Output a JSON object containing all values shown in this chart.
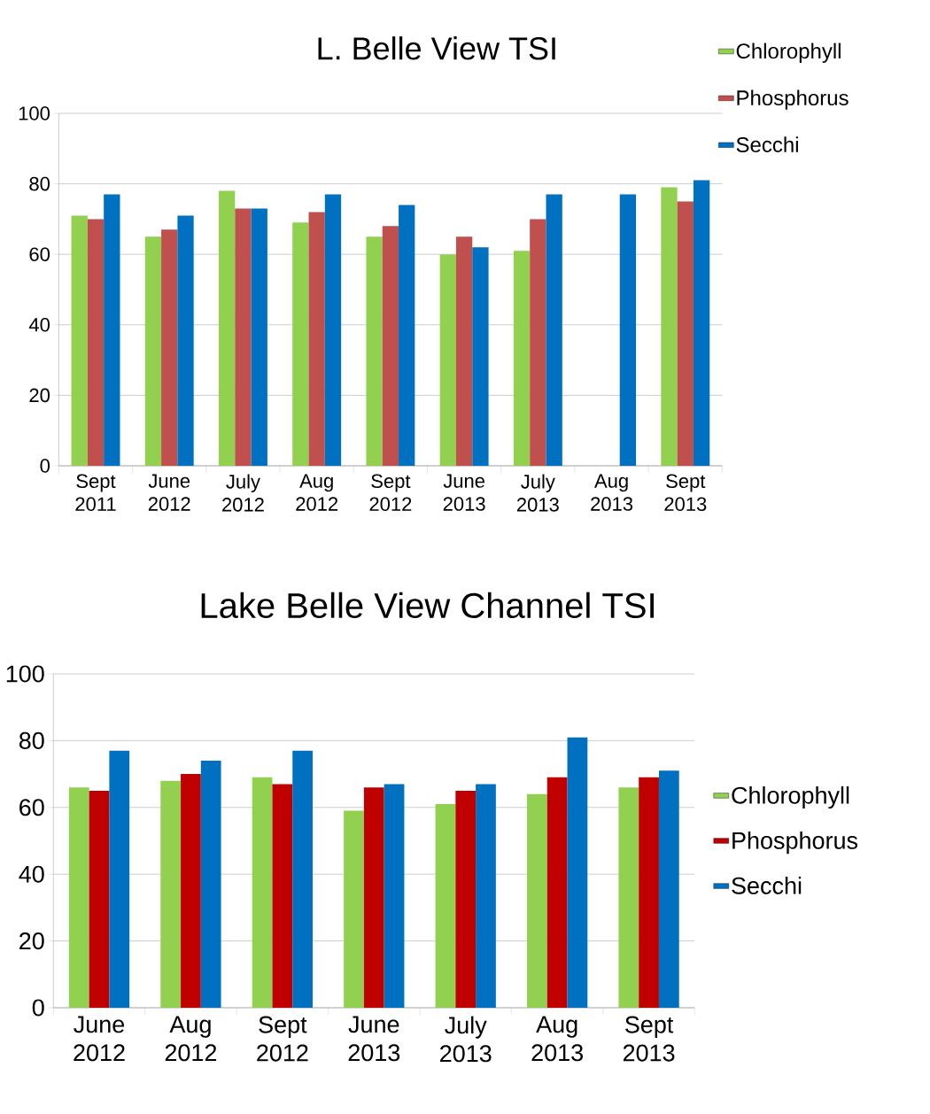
{
  "chart_data": [
    {
      "type": "bar",
      "title": "L. Belle View TSI",
      "categories": [
        "Sept 2011",
        "June 2012",
        "July 2012",
        "Aug 2012",
        "Sept 2012",
        "June 2013",
        "July 2013",
        "Aug 2013",
        "Sept 2013"
      ],
      "series": [
        {
          "name": "Chlorophyll",
          "color": "#92d050",
          "values": [
            71,
            65,
            78,
            69,
            65,
            60,
            61,
            null,
            79
          ]
        },
        {
          "name": "Phosphorus",
          "color": "#c0504d",
          "values": [
            70,
            67,
            73,
            72,
            68,
            65,
            70,
            null,
            75
          ]
        },
        {
          "name": "Secchi",
          "color": "#0070c0",
          "values": [
            77,
            71,
            73,
            77,
            74,
            62,
            77,
            77,
            81
          ]
        }
      ],
      "ylim": [
        0,
        100
      ],
      "yticks": [
        0,
        20,
        40,
        60,
        80,
        100
      ],
      "grid": "y",
      "legend": "top right"
    },
    {
      "type": "bar",
      "title": "Lake Belle View Channel TSI",
      "categories": [
        "June 2012",
        "Aug 2012",
        "Sept 2012",
        "June 2013",
        "July 2013",
        "Aug 2013",
        "Sept 2013"
      ],
      "series": [
        {
          "name": "Chlorophyll",
          "color": "#92d050",
          "values": [
            66,
            68,
            69,
            59,
            61,
            64,
            66
          ]
        },
        {
          "name": "Phosphorus",
          "color": "#c00000",
          "values": [
            65,
            70,
            67,
            66,
            65,
            69,
            69
          ]
        },
        {
          "name": "Secchi",
          "color": "#0070c0",
          "values": [
            77,
            74,
            77,
            67,
            67,
            81,
            71
          ]
        }
      ],
      "ylim": [
        0,
        100
      ],
      "yticks": [
        0,
        20,
        40,
        60,
        80,
        100
      ],
      "grid": "y",
      "legend": "right"
    }
  ]
}
